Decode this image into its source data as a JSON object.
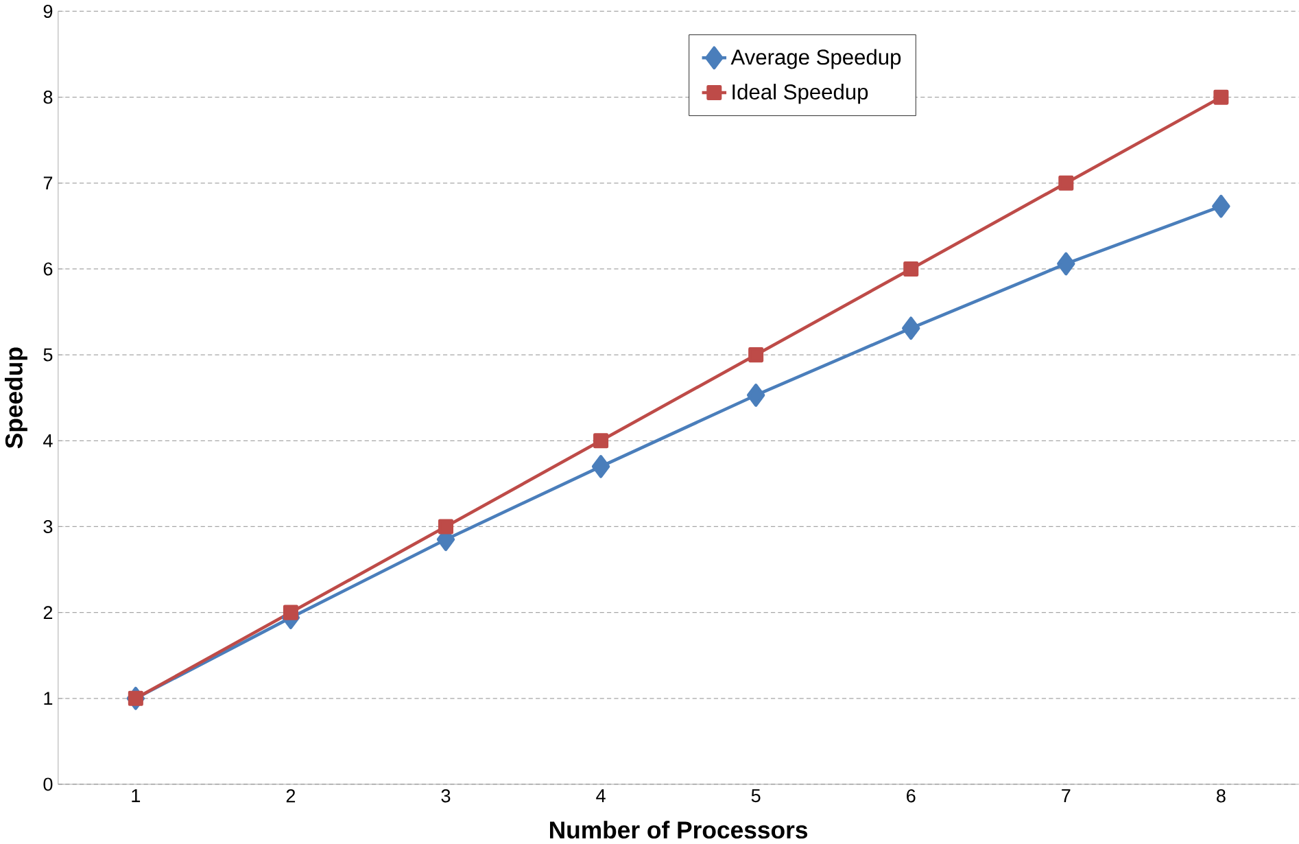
{
  "chart_data": {
    "type": "line",
    "xlabel": "Number of Processors",
    "ylabel": "Speedup",
    "categories": [
      "1",
      "2",
      "3",
      "4",
      "5",
      "6",
      "7",
      "8"
    ],
    "series": [
      {
        "name": "Average Speedup",
        "color": "#4a7ebb",
        "marker": "diamond",
        "values": [
          1,
          1.94,
          2.85,
          3.7,
          4.53,
          5.31,
          6.06,
          6.73
        ]
      },
      {
        "name": "Ideal Speedup",
        "color": "#be4b48",
        "marker": "square",
        "values": [
          1,
          2,
          3,
          4,
          5,
          6,
          7,
          8
        ]
      }
    ],
    "ylim": [
      0,
      9
    ],
    "yticks": [
      0,
      1,
      2,
      3,
      4,
      5,
      6,
      7,
      8,
      9
    ],
    "grid": "y",
    "legend": "top",
    "line_style": "solid"
  }
}
